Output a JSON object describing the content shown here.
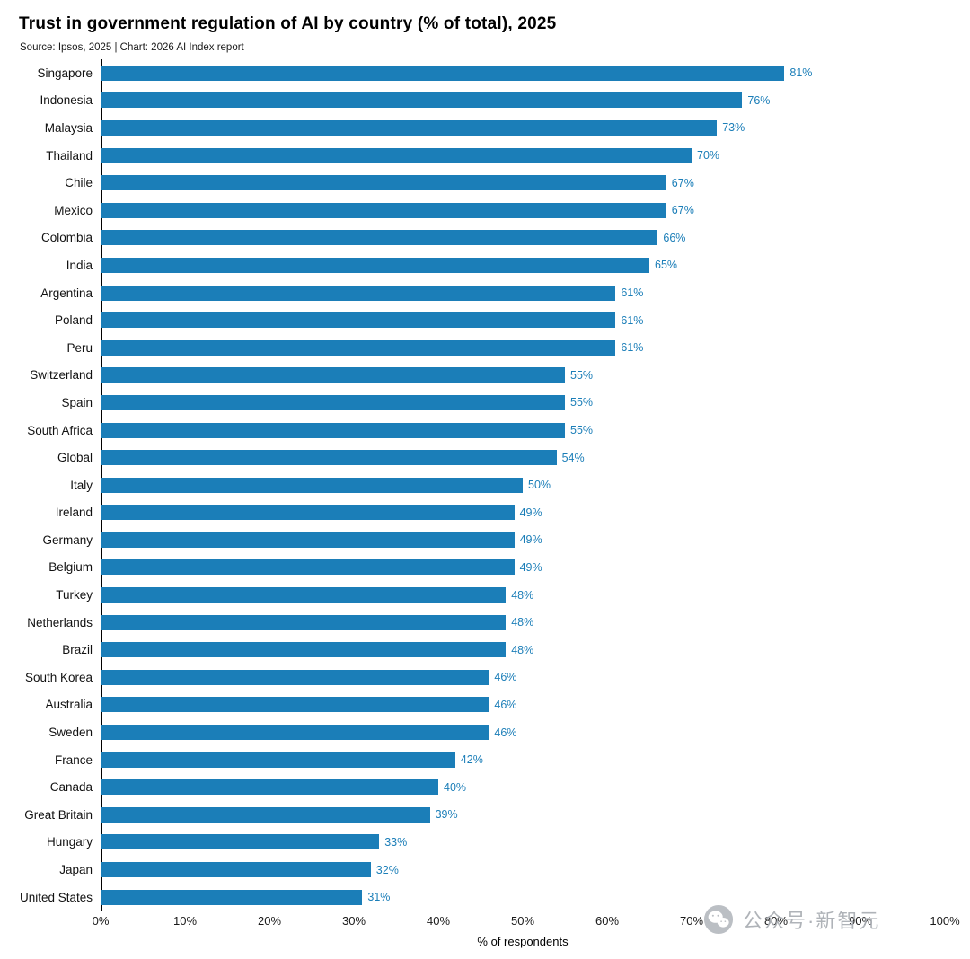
{
  "header": {
    "title": "Trust in government regulation of AI by country (% of total), 2025",
    "source": "Source: Ipsos, 2025 | Chart: 2026 AI Index report"
  },
  "chart_data": {
    "type": "bar",
    "orientation": "horizontal",
    "title": "Trust in government regulation of AI by country (% of total), 2025",
    "xlabel": "% of respondents",
    "ylabel": "",
    "xlim": [
      0,
      100
    ],
    "grid": false,
    "legend": "none",
    "bar_color": "#1b7eb8",
    "value_label_color": "#1b7eb8",
    "x_ticks": [
      "0%",
      "10%",
      "20%",
      "30%",
      "40%",
      "50%",
      "60%",
      "70%",
      "80%",
      "90%",
      "100%"
    ],
    "categories": [
      "Singapore",
      "Indonesia",
      "Malaysia",
      "Thailand",
      "Chile",
      "Mexico",
      "Colombia",
      "India",
      "Argentina",
      "Poland",
      "Peru",
      "Switzerland",
      "Spain",
      "South Africa",
      "Global",
      "Italy",
      "Ireland",
      "Germany",
      "Belgium",
      "Turkey",
      "Netherlands",
      "Brazil",
      "South Korea",
      "Australia",
      "Sweden",
      "France",
      "Canada",
      "Great Britain",
      "Hungary",
      "Japan",
      "United States"
    ],
    "values": [
      81,
      76,
      73,
      70,
      67,
      67,
      66,
      65,
      61,
      61,
      61,
      55,
      55,
      55,
      54,
      50,
      49,
      49,
      49,
      48,
      48,
      48,
      46,
      46,
      46,
      42,
      40,
      39,
      33,
      32,
      31
    ],
    "value_labels": [
      "81%",
      "76%",
      "73%",
      "70%",
      "67%",
      "67%",
      "66%",
      "65%",
      "61%",
      "61%",
      "61%",
      "55%",
      "55%",
      "55%",
      "54%",
      "50%",
      "49%",
      "49%",
      "49%",
      "48%",
      "48%",
      "48%",
      "46%",
      "46%",
      "46%",
      "42%",
      "40%",
      "39%",
      "33%",
      "32%",
      "31%"
    ]
  },
  "watermark": {
    "text": "公众号·新智元",
    "icon": "wechat-icon",
    "color": "#a9adb3"
  }
}
